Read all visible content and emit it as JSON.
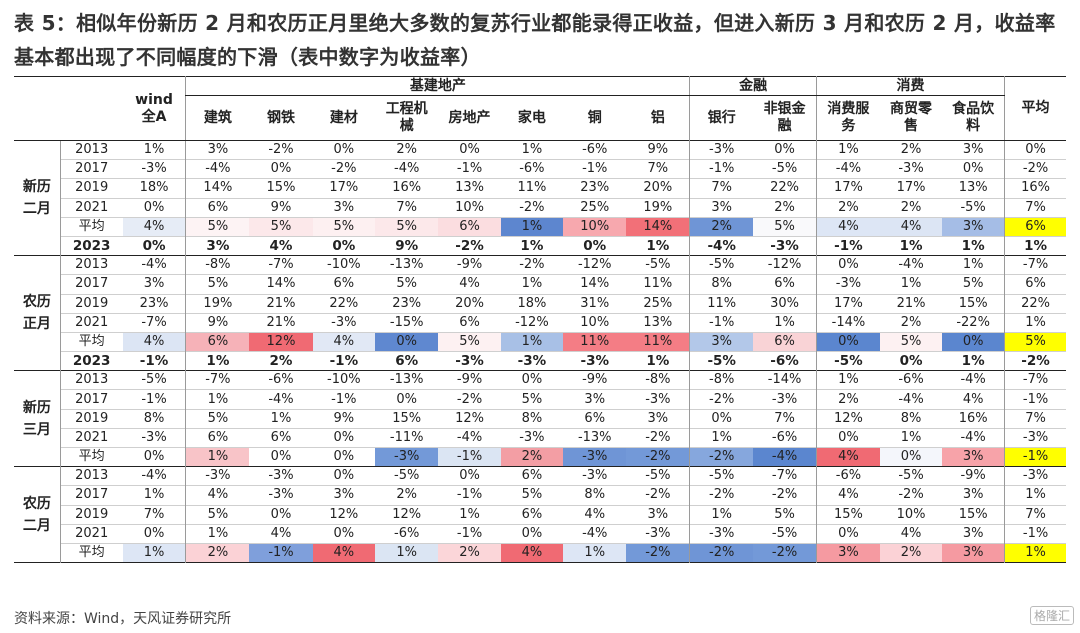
{
  "title": "表 5：相似年份新历 2 月和农历正月里绝大多数的复苏行业都能录得正收益，但进入新历 3 月和农历 2 月，收益率基本都出现了不同幅度的下滑（表中数字为收益率）",
  "groups": [
    "基建地产",
    "金融",
    "消费"
  ],
  "columns": [
    "wind全A",
    "建筑",
    "钢铁",
    "建材",
    "工程机械",
    "房地产",
    "家电",
    "铜",
    "铝",
    "银行",
    "非银金融",
    "消费服务",
    "商贸零售",
    "食品饮料",
    "平均"
  ],
  "sections": [
    {
      "label": "新历二月",
      "rows": [
        {
          "year": "2013",
          "values": [
            "1%",
            "3%",
            "-2%",
            "0%",
            "2%",
            "0%",
            "1%",
            "-6%",
            "9%",
            "-3%",
            "0%",
            "1%",
            "2%",
            "3%",
            "0%"
          ]
        },
        {
          "year": "2017",
          "values": [
            "-3%",
            "-4%",
            "0%",
            "-2%",
            "-4%",
            "-1%",
            "-6%",
            "-1%",
            "7%",
            "-1%",
            "-5%",
            "-4%",
            "-3%",
            "0%",
            "-2%"
          ]
        },
        {
          "year": "2019",
          "values": [
            "18%",
            "14%",
            "15%",
            "17%",
            "16%",
            "13%",
            "11%",
            "23%",
            "20%",
            "7%",
            "22%",
            "17%",
            "17%",
            "13%",
            "16%"
          ]
        },
        {
          "year": "2021",
          "values": [
            "0%",
            "6%",
            "9%",
            "3%",
            "7%",
            "10%",
            "-2%",
            "25%",
            "19%",
            "3%",
            "2%",
            "2%",
            "2%",
            "-5%",
            "7%"
          ]
        },
        {
          "year": "平均",
          "type": "avg",
          "values": [
            "4%",
            "5%",
            "5%",
            "5%",
            "5%",
            "6%",
            "1%",
            "10%",
            "14%",
            "2%",
            "5%",
            "4%",
            "4%",
            "3%",
            "6%"
          ]
        },
        {
          "year": "2023",
          "type": "y2023",
          "values": [
            "0%",
            "3%",
            "4%",
            "0%",
            "9%",
            "-2%",
            "1%",
            "0%",
            "1%",
            "-4%",
            "-3%",
            "-1%",
            "1%",
            "1%",
            "1%"
          ]
        }
      ]
    },
    {
      "label": "农历正月",
      "rows": [
        {
          "year": "2013",
          "values": [
            "-4%",
            "-8%",
            "-7%",
            "-10%",
            "-13%",
            "-9%",
            "-2%",
            "-12%",
            "-5%",
            "-5%",
            "-12%",
            "0%",
            "-4%",
            "1%",
            "-7%"
          ]
        },
        {
          "year": "2017",
          "values": [
            "3%",
            "5%",
            "14%",
            "6%",
            "5%",
            "4%",
            "1%",
            "14%",
            "11%",
            "8%",
            "6%",
            "-3%",
            "1%",
            "5%",
            "6%"
          ]
        },
        {
          "year": "2019",
          "values": [
            "23%",
            "19%",
            "21%",
            "22%",
            "23%",
            "20%",
            "18%",
            "31%",
            "25%",
            "11%",
            "30%",
            "17%",
            "21%",
            "15%",
            "22%"
          ]
        },
        {
          "year": "2021",
          "values": [
            "-7%",
            "9%",
            "21%",
            "-3%",
            "-15%",
            "6%",
            "-12%",
            "10%",
            "13%",
            "-1%",
            "1%",
            "-14%",
            "2%",
            "-22%",
            "1%"
          ]
        },
        {
          "year": "平均",
          "type": "avg",
          "values": [
            "4%",
            "6%",
            "12%",
            "4%",
            "0%",
            "5%",
            "1%",
            "11%",
            "11%",
            "3%",
            "6%",
            "0%",
            "5%",
            "0%",
            "5%"
          ]
        },
        {
          "year": "2023",
          "type": "y2023",
          "values": [
            "-1%",
            "1%",
            "2%",
            "-1%",
            "6%",
            "-3%",
            "-3%",
            "-3%",
            "1%",
            "-5%",
            "-6%",
            "-5%",
            "0%",
            "1%",
            "-2%"
          ]
        }
      ]
    },
    {
      "label": "新历三月",
      "rows": [
        {
          "year": "2013",
          "values": [
            "-5%",
            "-7%",
            "-6%",
            "-10%",
            "-13%",
            "-9%",
            "0%",
            "-9%",
            "-8%",
            "-8%",
            "-14%",
            "1%",
            "-6%",
            "-4%",
            "-7%"
          ]
        },
        {
          "year": "2017",
          "values": [
            "-1%",
            "1%",
            "-4%",
            "-1%",
            "0%",
            "-2%",
            "5%",
            "3%",
            "-3%",
            "-2%",
            "-3%",
            "2%",
            "-4%",
            "4%",
            "-1%"
          ]
        },
        {
          "year": "2019",
          "values": [
            "8%",
            "5%",
            "1%",
            "9%",
            "15%",
            "12%",
            "8%",
            "6%",
            "3%",
            "0%",
            "7%",
            "12%",
            "8%",
            "16%",
            "7%"
          ]
        },
        {
          "year": "2021",
          "values": [
            "-3%",
            "6%",
            "6%",
            "0%",
            "-11%",
            "-4%",
            "-3%",
            "-13%",
            "-2%",
            "1%",
            "-6%",
            "0%",
            "1%",
            "-4%",
            "-3%"
          ]
        },
        {
          "year": "平均",
          "type": "avg",
          "values": [
            "0%",
            "1%",
            "0%",
            "0%",
            "-3%",
            "-1%",
            "2%",
            "-3%",
            "-2%",
            "-2%",
            "-4%",
            "4%",
            "0%",
            "3%",
            "-1%"
          ]
        }
      ]
    },
    {
      "label": "农历二月",
      "rows": [
        {
          "year": "2013",
          "values": [
            "-4%",
            "-3%",
            "-3%",
            "0%",
            "-5%",
            "0%",
            "6%",
            "-3%",
            "-5%",
            "-5%",
            "-7%",
            "-6%",
            "-5%",
            "-9%",
            "-3%"
          ]
        },
        {
          "year": "2017",
          "values": [
            "1%",
            "4%",
            "-3%",
            "3%",
            "2%",
            "-1%",
            "5%",
            "8%",
            "-2%",
            "-2%",
            "-2%",
            "4%",
            "-2%",
            "3%",
            "1%"
          ]
        },
        {
          "year": "2019",
          "values": [
            "7%",
            "5%",
            "0%",
            "12%",
            "12%",
            "1%",
            "6%",
            "4%",
            "3%",
            "1%",
            "5%",
            "15%",
            "10%",
            "15%",
            "7%"
          ]
        },
        {
          "year": "2021",
          "values": [
            "0%",
            "1%",
            "4%",
            "0%",
            "-6%",
            "-1%",
            "0%",
            "-4%",
            "-3%",
            "-3%",
            "-5%",
            "0%",
            "4%",
            "3%",
            "-1%"
          ]
        },
        {
          "year": "平均",
          "type": "avg",
          "values": [
            "1%",
            "2%",
            "-1%",
            "4%",
            "1%",
            "2%",
            "4%",
            "1%",
            "-2%",
            "-2%",
            "-2%",
            "3%",
            "2%",
            "3%",
            "1%"
          ]
        }
      ]
    }
  ],
  "colors": {
    "highlight_yellow": "#ffff00",
    "deep_red": "#f0707a",
    "deep_blue": "#5b86cf",
    "light_red": "#fbe3e6",
    "light_blue": "#dbe5f3"
  },
  "avg_colors": [
    [
      "#e6ecf6",
      "#fdf3f4",
      "#fce8ea",
      "#fdf0f1",
      "#fce8ea",
      "#fbdde0",
      "#5d86cf",
      "#f7a8ae",
      "#f27078",
      "#6f95d6",
      "#f9f9fb",
      "#dde6f5",
      "#dce5f4",
      "#a5bde6",
      "#ffff00"
    ],
    [
      "#dce5f4",
      "#f6b2b8",
      "#f06a73",
      "#e1e8f5",
      "#5f88d0",
      "#fdf1f2",
      "#a8c0e6",
      "#f47d85",
      "#f47d85",
      "#b3c8e9",
      "#f9d3d6",
      "#5b86cf",
      "#fdf1f2",
      "#5b86cf",
      "#ffff00"
    ],
    [
      "#ffffff",
      "#f8c4c8",
      "#ffffff",
      "#ffffff",
      "#7399d8",
      "#dbe5f3",
      "#f39ea4",
      "#6f95d6",
      "#7399d8",
      "#86a7dd",
      "#5b86cf",
      "#f06a73",
      "#f4f6fb",
      "#f7a3a9",
      "#ffff00"
    ],
    [
      "#dde6f5",
      "#fbd2d6",
      "#7f9fdb",
      "#f06a73",
      "#dbe5f3",
      "#fbd6d9",
      "#f06a73",
      "#dde6f5",
      "#7399d8",
      "#6f95d6",
      "#7399d8",
      "#f59aa1",
      "#fbd2d6",
      "#f59aa1",
      "#ffff00"
    ]
  ],
  "source": "资料来源：Wind，天风证券研究所",
  "watermark": "格隆汇"
}
